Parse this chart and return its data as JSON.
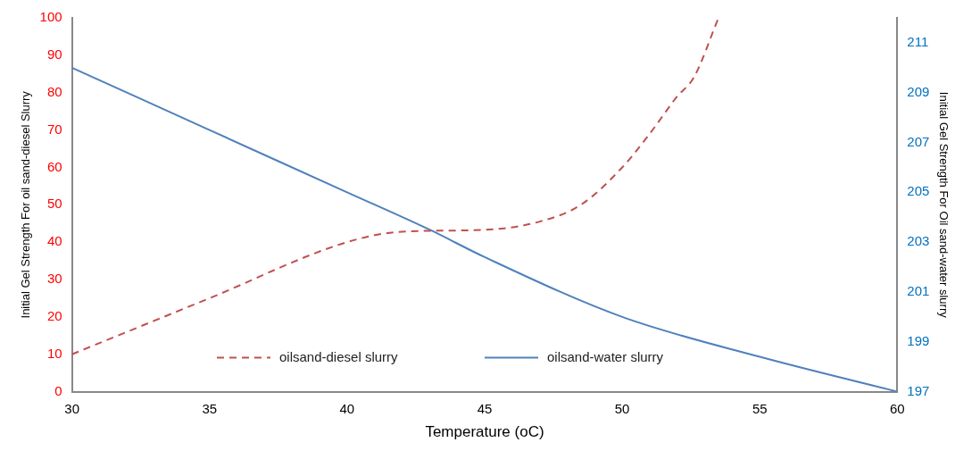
{
  "chart_data": {
    "type": "line",
    "xlabel": "Temperature (oC)",
    "ylabel": "Initial Gel Strength For oil sand-diesel Slurry",
    "y2label": "Initial Gel Strength For Oil sand-water slurry",
    "xlim": [
      30,
      60
    ],
    "xticks": [
      30,
      35,
      40,
      45,
      50,
      55,
      60
    ],
    "ylim": [
      0,
      100
    ],
    "yticks": [
      0,
      10,
      20,
      30,
      40,
      50,
      60,
      70,
      80,
      90,
      100
    ],
    "y2lim": [
      197,
      212
    ],
    "y2ticks": [
      197,
      199,
      201,
      203,
      205,
      207,
      209,
      211
    ],
    "legend": "bottom",
    "grid": false,
    "series": [
      {
        "name": "oilsand-diesel slurry",
        "color": "#c0504d",
        "line_style": "dashed",
        "x": [
          30,
          35,
          40,
          42,
          45,
          47,
          48.5,
          50,
          51,
          52,
          52.6,
          53.5
        ],
        "values": [
          10,
          25,
          40,
          42.8,
          43.3,
          45.5,
          50,
          60,
          69,
          79,
          84,
          100
        ]
      },
      {
        "name": "oilsand-water slurry",
        "color": "#4f81bd",
        "line_style": "solid",
        "axis": "y2",
        "x": [
          30,
          35,
          40,
          43,
          45,
          50,
          55,
          60
        ],
        "values": [
          210,
          207.5,
          205,
          203.5,
          202.4,
          200,
          198.4,
          197
        ]
      }
    ]
  }
}
